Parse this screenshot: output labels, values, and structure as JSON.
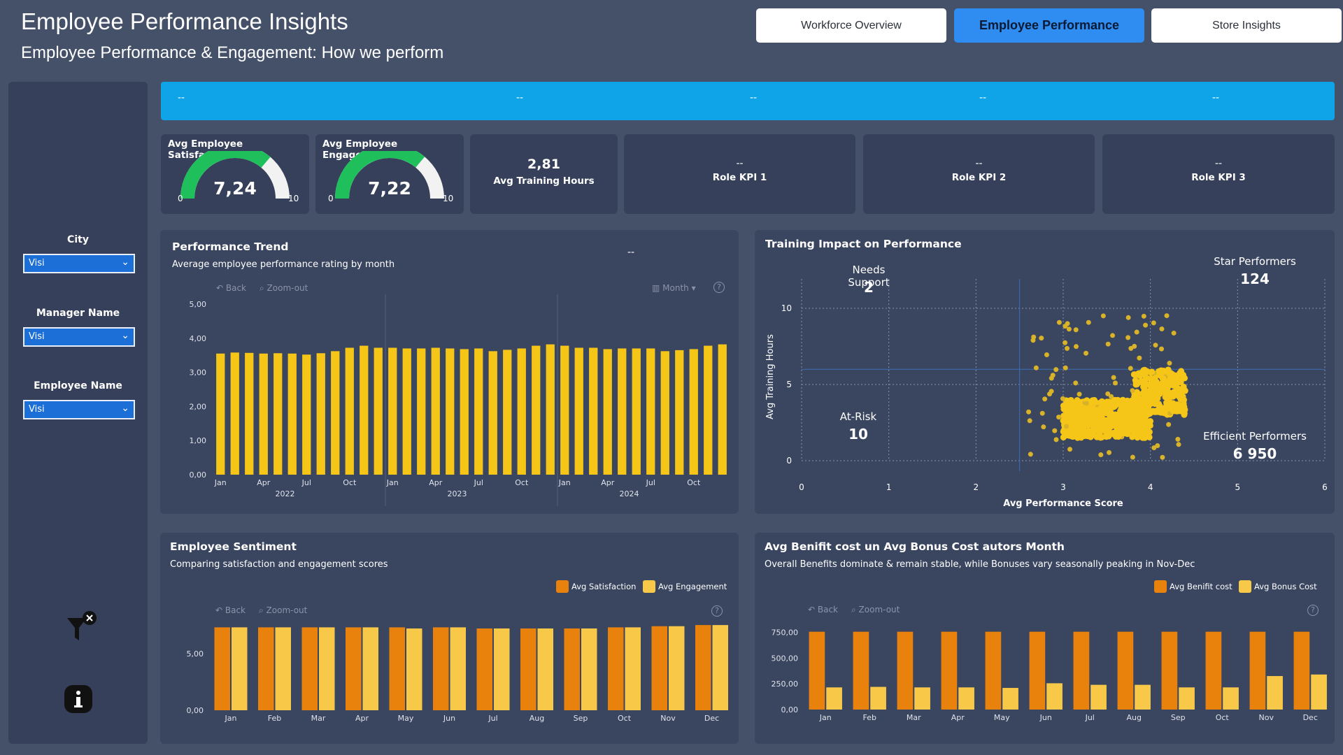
{
  "header": {
    "title": "Employee Performance Insights",
    "subtitle": "Employee Performance & Engagement:  How we perform"
  },
  "nav": [
    {
      "label": "Workforce Overview",
      "active": false
    },
    {
      "label": "Employee Performance",
      "active": true
    },
    {
      "label": "Store Insights",
      "active": false
    }
  ],
  "filters": [
    {
      "label": "City",
      "value": "Visi"
    },
    {
      "label": "Manager Name",
      "value": "Visi"
    },
    {
      "label": "Employee Name",
      "value": "Visi"
    }
  ],
  "banner": [
    "--",
    "--",
    "--",
    "--",
    "--"
  ],
  "kpis": {
    "satisfaction": {
      "title": "Avg Employee Satisfaction",
      "value": "7,24",
      "min": "0",
      "max": "10",
      "fraction": 0.724
    },
    "engagement": {
      "title": "Avg Employee Engagement",
      "value": "7,22",
      "min": "0",
      "max": "10",
      "fraction": 0.722
    },
    "training": {
      "value": "2,81",
      "label": "Avg Training Hours"
    },
    "role1": {
      "value": "--",
      "label": "Role KPI 1"
    },
    "role2": {
      "value": "--",
      "label": "Role KPI 2"
    },
    "role3": {
      "value": "--",
      "label": "Role KPI 3"
    }
  },
  "toolbar": {
    "back": "Back",
    "zoom": "Zoom-out",
    "month": "Month",
    "help": "?"
  },
  "perf": {
    "title": "Performance Trend",
    "subtitle": "Average employee performance rating by month",
    "placeholder": "--"
  },
  "scatter": {
    "title": "Training Impact on Performance",
    "q_needs": "Needs Support",
    "q_needs_n": "2",
    "q_star": "Star Performers",
    "q_star_n": "124",
    "q_risk": "At-Risk",
    "q_risk_n": "10",
    "q_eff": "Efficient Performers",
    "q_eff_n": "6 950"
  },
  "sent": {
    "title": "Employee Sentiment",
    "subtitle": "Comparing satisfaction and engagement scores"
  },
  "cost": {
    "title": "Avg Benifit cost un Avg Bonus Cost autors Month",
    "subtitle": "Overall Benefits dominate & remain stable, while Bonuses vary seasonally peaking in Nov-Dec"
  },
  "colors": {
    "yellow": "#f5c518",
    "orange": "#e8820c",
    "lightyellow": "#f8c848",
    "bg": "#455168",
    "panel": "#3a4560"
  },
  "chart_data": [
    {
      "type": "bar",
      "id": "performance_trend",
      "title": "Performance Trend",
      "categories": [
        "Jan",
        "Feb",
        "Mar",
        "Apr",
        "May",
        "Jun",
        "Jul",
        "Aug",
        "Sep",
        "Oct",
        "Nov",
        "Dec",
        "Jan",
        "Feb",
        "Mar",
        "Apr",
        "May",
        "Jun",
        "Jul",
        "Aug",
        "Sep",
        "Oct",
        "Nov",
        "Dec",
        "Jan",
        "Feb",
        "Mar",
        "Apr",
        "May",
        "Jun",
        "Jul",
        "Aug",
        "Sep",
        "Oct",
        "Nov",
        "Dec"
      ],
      "tick_labels": [
        "Jan",
        "Apr",
        "Jul",
        "Oct",
        "Jan",
        "Apr",
        "Jul",
        "Oct",
        "Jan",
        "Apr",
        "Jul",
        "Oct"
      ],
      "years": [
        "2022",
        "2023",
        "2024"
      ],
      "values": [
        3.55,
        3.58,
        3.57,
        3.55,
        3.56,
        3.55,
        3.52,
        3.56,
        3.62,
        3.72,
        3.78,
        3.72,
        3.72,
        3.7,
        3.7,
        3.72,
        3.7,
        3.68,
        3.7,
        3.62,
        3.66,
        3.7,
        3.78,
        3.82,
        3.78,
        3.72,
        3.72,
        3.68,
        3.7,
        3.7,
        3.7,
        3.62,
        3.65,
        3.68,
        3.78,
        3.82
      ],
      "yticks": [
        "0,00",
        "1,00",
        "2,00",
        "3,00",
        "4,00",
        "5,00"
      ],
      "ylim": [
        0,
        5
      ]
    },
    {
      "type": "scatter",
      "id": "training_impact",
      "title": "Training Impact on Performance",
      "xlabel": "Avg Performance Score",
      "ylabel": "Avg Training Hours",
      "xlim": [
        0,
        6
      ],
      "ylim": [
        0,
        10
      ],
      "xticks": [
        "0",
        "1",
        "2",
        "3",
        "4",
        "5",
        "6"
      ],
      "yticks": [
        "0",
        "5",
        "10"
      ],
      "thresholds": {
        "x": 2.5,
        "y": 6
      }
    },
    {
      "type": "bar",
      "id": "employee_sentiment",
      "title": "Employee Sentiment",
      "categories": [
        "Jan",
        "Feb",
        "Mar",
        "Apr",
        "May",
        "Jun",
        "Jul",
        "Aug",
        "Sep",
        "Oct",
        "Nov",
        "Dec"
      ],
      "series": [
        {
          "name": "Avg Satisfaction",
          "values": [
            7.3,
            7.3,
            7.3,
            7.3,
            7.3,
            7.3,
            7.2,
            7.2,
            7.2,
            7.3,
            7.4,
            7.5
          ]
        },
        {
          "name": "Avg Engagement",
          "values": [
            7.3,
            7.3,
            7.3,
            7.3,
            7.2,
            7.3,
            7.2,
            7.2,
            7.2,
            7.3,
            7.4,
            7.5
          ]
        }
      ],
      "yticks": [
        "0,00",
        "5,00"
      ],
      "ylim": [
        0,
        8
      ]
    },
    {
      "type": "bar",
      "id": "benefit_bonus",
      "title": "Avg Benifit cost un Avg Bonus Cost autors Month",
      "categories": [
        "Jan",
        "Feb",
        "Mar",
        "Apr",
        "May",
        "Jun",
        "Jul",
        "Aug",
        "Sep",
        "Oct",
        "Nov",
        "Dec"
      ],
      "series": [
        {
          "name": "Avg Benifit cost",
          "values": [
            755,
            755,
            755,
            755,
            755,
            755,
            755,
            755,
            755,
            755,
            755,
            755
          ]
        },
        {
          "name": "Avg Bonus Cost",
          "values": [
            215,
            220,
            215,
            215,
            210,
            255,
            240,
            240,
            215,
            215,
            325,
            340
          ]
        }
      ],
      "yticks": [
        "0,00",
        "250,00",
        "500,00",
        "750,00"
      ],
      "ylim": [
        0,
        800
      ]
    }
  ]
}
